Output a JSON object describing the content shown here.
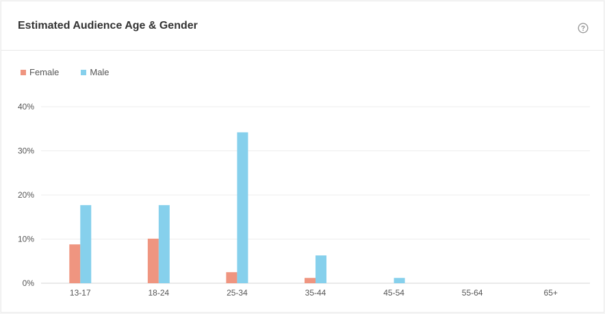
{
  "header": {
    "title": "Estimated Audience Age & Gender",
    "help_icon": "question-circle-icon"
  },
  "colors": {
    "female": "#ef9580",
    "male": "#86d0ec",
    "grid": "#ececec",
    "axis_text": "#555555"
  },
  "chart_data": {
    "type": "bar",
    "title": "Estimated Audience Age & Gender",
    "xlabel": "",
    "ylabel": "",
    "categories": [
      "13-17",
      "18-24",
      "25-34",
      "35-44",
      "45-54",
      "55-64",
      "65+"
    ],
    "series": [
      {
        "name": "Female",
        "values": [
          8.8,
          10.1,
          2.5,
          1.2,
          0,
          0,
          0
        ]
      },
      {
        "name": "Male",
        "values": [
          17.7,
          17.7,
          34.2,
          6.3,
          1.2,
          0,
          0
        ]
      }
    ],
    "ylim": [
      0,
      40
    ],
    "yticks": [
      "0%",
      "10%",
      "20%",
      "30%",
      "40%"
    ],
    "ytick_values": [
      0,
      10,
      20,
      30,
      40
    ],
    "grid": true,
    "legend_position": "top-left"
  }
}
